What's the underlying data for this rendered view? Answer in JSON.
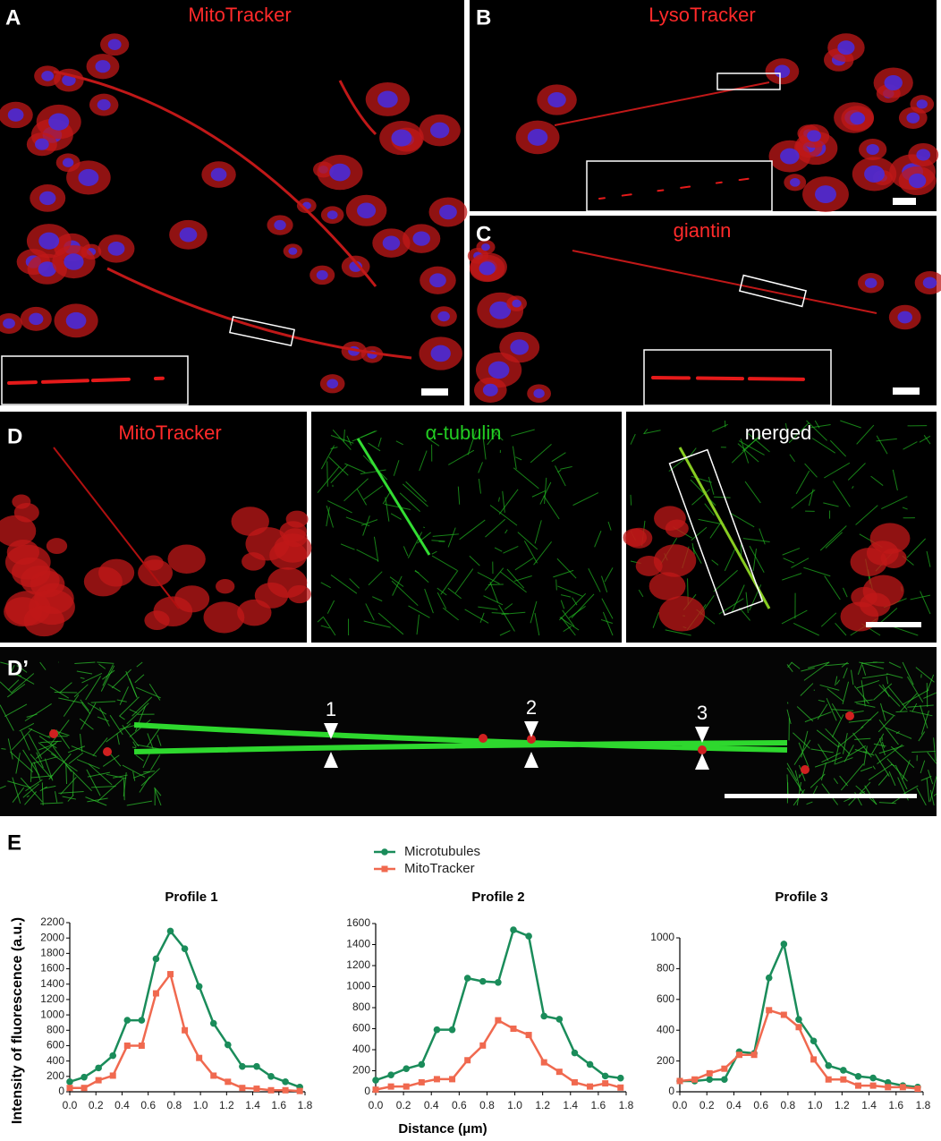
{
  "figure": {
    "panels": {
      "A": {
        "label": "A",
        "stain": "MitoTracker"
      },
      "B": {
        "label": "B",
        "stain": "LysoTracker"
      },
      "C": {
        "label": "C",
        "stain": "giantin"
      },
      "D": {
        "label": "D",
        "stains": [
          "MitoTracker",
          "α-tubulin",
          "merged"
        ]
      },
      "D_prime": {
        "label": "D’",
        "markers": [
          "1",
          "2",
          "3"
        ]
      },
      "E": {
        "label": "E"
      }
    }
  },
  "chart_data": [
    {
      "type": "line",
      "title": "Profile 1",
      "y_label": "Intensity of fluorescence (a.u.)",
      "legend": true,
      "x": [
        0,
        0.11,
        0.22,
        0.33,
        0.44,
        0.55,
        0.66,
        0.77,
        0.88,
        0.99,
        1.1,
        1.21,
        1.32,
        1.43,
        1.54,
        1.65,
        1.76
      ],
      "series": [
        {
          "name": "Microtubules",
          "color": "#1a8c5a",
          "marker": "circle",
          "values": [
            130,
            190,
            310,
            470,
            930,
            930,
            1730,
            2090,
            1860,
            1370,
            890,
            610,
            330,
            330,
            200,
            130,
            60
          ]
        },
        {
          "name": "MitoTracker",
          "color": "#f0694f",
          "marker": "square",
          "values": [
            50,
            50,
            150,
            210,
            600,
            600,
            1280,
            1530,
            800,
            440,
            210,
            130,
            50,
            40,
            20,
            20,
            10
          ]
        }
      ],
      "xlim": [
        0,
        1.8
      ],
      "xticks": [
        {
          "value": 0,
          "label": "0.0"
        },
        0.2,
        0.4,
        0.6,
        0.8,
        {
          "value": 1,
          "label": "1.0"
        },
        1.2,
        1.4,
        1.6,
        1.8
      ],
      "ylim": [
        0,
        2200
      ],
      "yticks": [
        0,
        200,
        400,
        600,
        800,
        1000,
        1200,
        1400,
        1600,
        1800,
        2000,
        2200
      ]
    },
    {
      "type": "line",
      "title": "Profile 2",
      "x_label": "Distance (μm)",
      "x": [
        0,
        0.11,
        0.22,
        0.33,
        0.44,
        0.55,
        0.66,
        0.77,
        0.88,
        0.99,
        1.1,
        1.21,
        1.32,
        1.43,
        1.54,
        1.65,
        1.76
      ],
      "series": [
        {
          "name": "Microtubules",
          "color": "#1a8c5a",
          "marker": "circle",
          "values": [
            110,
            160,
            220,
            260,
            590,
            590,
            1080,
            1050,
            1040,
            1540,
            1480,
            720,
            690,
            370,
            260,
            150,
            130
          ]
        },
        {
          "name": "MitoTracker",
          "color": "#f0694f",
          "marker": "square",
          "values": [
            20,
            50,
            50,
            90,
            120,
            120,
            300,
            440,
            680,
            600,
            540,
            280,
            190,
            90,
            50,
            80,
            40
          ]
        }
      ],
      "xlim": [
        0,
        1.8
      ],
      "xticks": [
        {
          "value": 0,
          "label": "0.0"
        },
        0.2,
        0.4,
        0.6,
        0.8,
        {
          "value": 1,
          "label": "1.0"
        },
        1.2,
        1.4,
        1.6,
        1.8
      ],
      "ylim": [
        0,
        1600
      ],
      "yticks": [
        0,
        200,
        400,
        600,
        800,
        1000,
        1200,
        1400,
        1600
      ]
    },
    {
      "type": "line",
      "title": "Profile 3",
      "x": [
        0,
        0.11,
        0.22,
        0.33,
        0.44,
        0.55,
        0.66,
        0.77,
        0.88,
        0.99,
        1.1,
        1.21,
        1.32,
        1.43,
        1.54,
        1.65,
        1.76
      ],
      "series": [
        {
          "name": "Microtubules",
          "color": "#1a8c5a",
          "marker": "circle",
          "values": [
            70,
            70,
            80,
            80,
            260,
            250,
            740,
            960,
            470,
            330,
            170,
            140,
            100,
            90,
            60,
            40,
            30
          ]
        },
        {
          "name": "MitoTracker",
          "color": "#f0694f",
          "marker": "square",
          "values": [
            70,
            80,
            120,
            150,
            240,
            240,
            530,
            500,
            420,
            210,
            80,
            80,
            40,
            40,
            30,
            30,
            20
          ]
        }
      ],
      "xlim": [
        0,
        1.8
      ],
      "xticks": [
        {
          "value": 0,
          "label": "0.0"
        },
        0.2,
        0.4,
        0.6,
        0.8,
        {
          "value": 1,
          "label": "1.0"
        },
        1.2,
        1.4,
        1.6,
        1.8
      ],
      "ylim": [
        0,
        1000
      ],
      "yticks": [
        0,
        200,
        400,
        600,
        800,
        1000
      ]
    }
  ]
}
